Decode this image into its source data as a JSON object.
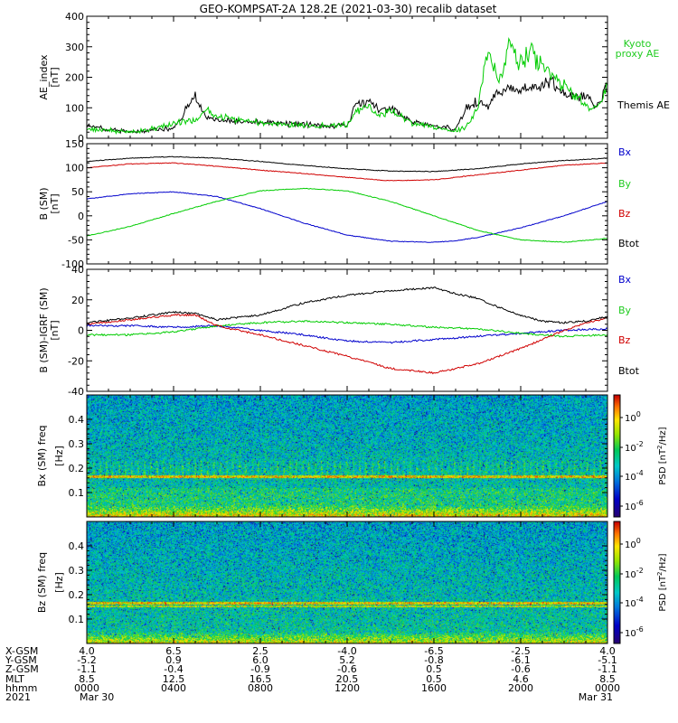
{
  "title": "GEO-KOMPSAT-2A 128.2E (2021-03-30) recalib dataset",
  "colors": {
    "black": "#000000",
    "red": "#d00000",
    "green": "#00cc00",
    "blue": "#0000cc",
    "legend_green": "#22cc22"
  },
  "chart_data": [
    {
      "type": "line",
      "ylabel": "AE_index [nT]",
      "ylim": [
        0,
        400
      ],
      "yticks": [
        "0",
        "100",
        "200",
        "300",
        "400"
      ],
      "series": [
        {
          "name": "Themis AE",
          "color": "#000000",
          "x": [
            0,
            1,
            2,
            3,
            4,
            5,
            5.2,
            5.5,
            6,
            7,
            8,
            9,
            10,
            11,
            12,
            12.4,
            13,
            13.5,
            14,
            15,
            16,
            17,
            17.5,
            18,
            18.5,
            19,
            19.5,
            20,
            20.5,
            21,
            21.5,
            22,
            22.5,
            23,
            23.5,
            24
          ],
          "y": [
            40,
            28,
            22,
            25,
            35,
            140,
            110,
            70,
            60,
            55,
            52,
            48,
            45,
            40,
            42,
            110,
            120,
            90,
            100,
            55,
            40,
            30,
            100,
            120,
            110,
            150,
            170,
            160,
            180,
            170,
            185,
            150,
            140,
            130,
            110,
            170
          ]
        },
        {
          "name": "Kyoto proxy AE",
          "color": "#00cc00",
          "x": [
            0,
            1,
            2,
            3,
            4,
            5,
            5.5,
            6,
            7,
            8,
            9,
            10,
            11,
            12,
            12.4,
            13,
            13.5,
            14,
            15,
            16,
            17,
            17.5,
            18,
            18.5,
            19,
            19.5,
            20,
            20.5,
            21,
            21.5,
            22,
            22.5,
            23,
            23.5,
            24
          ],
          "y": [
            30,
            25,
            22,
            30,
            50,
            60,
            90,
            75,
            60,
            50,
            45,
            42,
            40,
            45,
            90,
            100,
            80,
            90,
            50,
            35,
            25,
            40,
            90,
            300,
            180,
            300,
            250,
            280,
            230,
            200,
            170,
            140,
            110,
            90,
            170
          ]
        }
      ],
      "legend": [
        "Kyoto proxy AE",
        "Themis AE"
      ]
    },
    {
      "type": "line",
      "ylabel": "B (SM) [nT]",
      "ylim": [
        -100,
        150
      ],
      "yticks": [
        "-100",
        "-50",
        "0",
        "50",
        "100",
        "150"
      ],
      "series": [
        {
          "name": "Bx",
          "color": "#0000cc",
          "x": [
            0,
            2,
            4,
            6,
            8,
            10,
            12,
            14,
            16,
            17,
            18,
            20,
            22,
            24
          ],
          "y": [
            35,
            46,
            50,
            40,
            15,
            -15,
            -40,
            -53,
            -55,
            -52,
            -45,
            -25,
            0,
            30
          ]
        },
        {
          "name": "By",
          "color": "#00cc00",
          "x": [
            0,
            2,
            4,
            6,
            8,
            10,
            12,
            14,
            16,
            18,
            20,
            22,
            24
          ],
          "y": [
            -42,
            -22,
            5,
            30,
            52,
            57,
            52,
            30,
            0,
            -30,
            -50,
            -55,
            -47
          ]
        },
        {
          "name": "Bz",
          "color": "#d00000",
          "x": [
            0,
            2,
            4,
            6,
            8,
            10,
            12,
            14,
            16,
            18,
            20,
            22,
            24
          ],
          "y": [
            100,
            108,
            110,
            103,
            95,
            88,
            80,
            73,
            75,
            85,
            95,
            105,
            110
          ]
        },
        {
          "name": "Btot",
          "color": "#000000",
          "x": [
            0,
            2,
            4,
            6,
            8,
            10,
            12,
            14,
            16,
            18,
            20,
            22,
            24
          ],
          "y": [
            113,
            120,
            123,
            120,
            113,
            105,
            98,
            93,
            92,
            98,
            108,
            115,
            120
          ]
        }
      ],
      "legend": [
        "Bx",
        "By",
        "Bz",
        "Btot"
      ]
    },
    {
      "type": "line",
      "ylabel": "B (SM)-IGRF (SM) [nT]",
      "ylim": [
        -40,
        40
      ],
      "yticks": [
        "-40",
        "-20",
        "0",
        "20",
        "40"
      ],
      "series": [
        {
          "name": "Bx",
          "color": "#0000cc",
          "x": [
            0,
            2,
            4,
            6,
            8,
            10,
            12,
            14,
            16,
            18,
            20,
            22,
            24
          ],
          "y": [
            3,
            3,
            2,
            3,
            0,
            -3,
            -7,
            -8,
            -6,
            -4,
            -2,
            0,
            1
          ]
        },
        {
          "name": "By",
          "color": "#00cc00",
          "x": [
            0,
            2,
            4,
            6,
            8,
            10,
            12,
            14,
            16,
            18,
            20,
            22,
            24
          ],
          "y": [
            -3,
            -3,
            -1,
            3,
            5,
            6,
            5,
            4,
            2,
            1,
            -2,
            -4,
            -3
          ]
        },
        {
          "name": "Bz",
          "color": "#d00000",
          "x": [
            0,
            2,
            4,
            5,
            6,
            8,
            10,
            12,
            14,
            16,
            17,
            18,
            19,
            20,
            21,
            22,
            23,
            24
          ],
          "y": [
            4,
            7,
            10,
            10,
            3,
            -3,
            -10,
            -17,
            -25,
            -28,
            -25,
            -22,
            -17,
            -12,
            -6,
            0,
            5,
            8
          ]
        },
        {
          "name": "Btot",
          "color": "#000000",
          "x": [
            0,
            2,
            4,
            5,
            6,
            8,
            10,
            12,
            14,
            16,
            17,
            18,
            19,
            20,
            21,
            22,
            23,
            24
          ],
          "y": [
            5,
            8,
            12,
            11,
            7,
            10,
            18,
            23,
            26,
            28,
            24,
            21,
            15,
            10,
            6,
            5,
            6,
            9
          ]
        }
      ],
      "legend": [
        "Bx",
        "By",
        "Bz",
        "Btot"
      ]
    },
    {
      "type": "heatmap",
      "ylabel": "Bx (SM) freq [Hz]",
      "yticks": [
        "0.1",
        "0.2",
        "0.3",
        "0.4"
      ],
      "ylim": [
        0,
        0.5
      ],
      "colorbar": {
        "label": "PSD [nT^2/Hz]",
        "ticks": [
          "10^0",
          "10^-2",
          "10^-4",
          "10^-6"
        ]
      },
      "features": {
        "line_freq": 0.167
      }
    },
    {
      "type": "heatmap",
      "ylabel": "Bz (SM) freq [Hz]",
      "yticks": [
        "0.1",
        "0.2",
        "0.3",
        "0.4"
      ],
      "ylim": [
        0,
        0.5
      ],
      "colorbar": {
        "label": "PSD [nT^2/Hz]",
        "ticks": [
          "10^0",
          "10^-2",
          "10^-4",
          "10^-6"
        ]
      },
      "features": {
        "line_freq": 0.167
      }
    }
  ],
  "xaxis": {
    "xlim": [
      0,
      24
    ],
    "row_labels": [
      "X-GSM",
      "Y-GSM",
      "Z-GSM",
      "MLT",
      "hhmm",
      "2021"
    ],
    "columns": [
      {
        "x": 0,
        "values": [
          "4.0",
          "-5.2",
          "-1.1",
          "8.5",
          "0000",
          "Mar 30"
        ]
      },
      {
        "x": 4,
        "values": [
          "6.5",
          "0.9",
          "-0.4",
          "12.5",
          "0400",
          ""
        ]
      },
      {
        "x": 8,
        "values": [
          "2.5",
          "6.0",
          "-0.9",
          "16.5",
          "0800",
          ""
        ]
      },
      {
        "x": 12,
        "values": [
          "-4.0",
          "5.2",
          "-0.6",
          "20.5",
          "1200",
          ""
        ]
      },
      {
        "x": 16,
        "values": [
          "-6.5",
          "-0.8",
          "0.5",
          "0.5",
          "1600",
          ""
        ]
      },
      {
        "x": 20,
        "values": [
          "-2.5",
          "-6.1",
          "-0.6",
          "4.6",
          "2000",
          ""
        ]
      },
      {
        "x": 24,
        "values": [
          "4.0",
          "-5.1",
          "-1.1",
          "8.5",
          "0000",
          "Mar 31"
        ]
      }
    ]
  }
}
